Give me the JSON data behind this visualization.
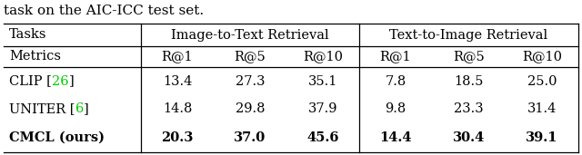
{
  "caption": "task on the AIC-ICC test set.",
  "rows": [
    {
      "label_parts": [
        "CLIP [",
        "26",
        "]"
      ],
      "values": [
        "13.4",
        "27.3",
        "35.1",
        "7.8",
        "18.5",
        "25.0"
      ],
      "bold": false
    },
    {
      "label_parts": [
        "UNITER [",
        "6",
        "]"
      ],
      "values": [
        "14.8",
        "29.8",
        "37.9",
        "9.8",
        "23.3",
        "31.4"
      ],
      "bold": false
    },
    {
      "label_parts": [
        "CMCL (ours)",
        "",
        ""
      ],
      "values": [
        "20.3",
        "37.0",
        "45.6",
        "14.4",
        "30.4",
        "39.1"
      ],
      "bold": true
    }
  ],
  "link_color": "#00cc00",
  "text_color": "#000000",
  "bg_color": "#ffffff",
  "font_size": 10.5
}
